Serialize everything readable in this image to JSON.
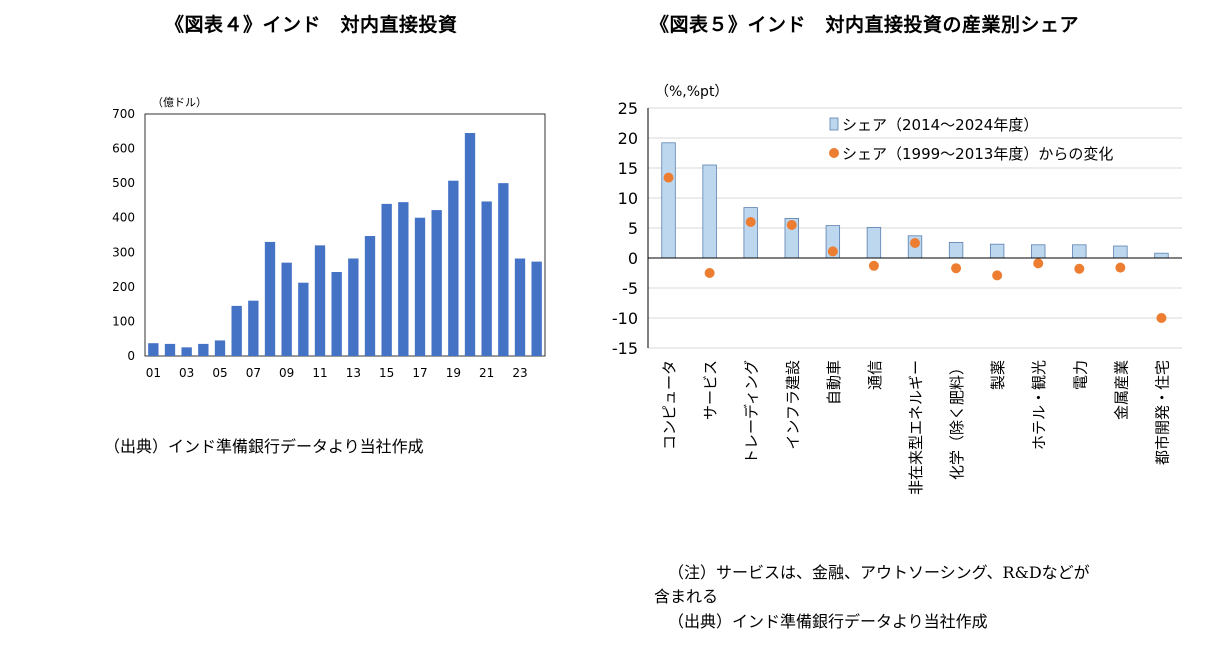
{
  "chart_data": [
    {
      "type": "bar",
      "title": "《図表４》インド　対内直接投資",
      "ylabel": "（億ドル）",
      "xlabel": "",
      "ylim": [
        0,
        700
      ],
      "yticks": [
        0,
        100,
        200,
        300,
        400,
        500,
        600,
        700
      ],
      "categories": [
        "01",
        "02",
        "03",
        "04",
        "05",
        "06",
        "07",
        "08",
        "09",
        "10",
        "11",
        "12",
        "13",
        "14",
        "15",
        "16",
        "17",
        "18",
        "19",
        "20",
        "21",
        "22",
        "23",
        "24"
      ],
      "xtick_labels": [
        "01",
        "",
        "03",
        "",
        "05",
        "",
        "07",
        "",
        "09",
        "",
        "11",
        "",
        "13",
        "",
        "15",
        "",
        "17",
        "",
        "19",
        "",
        "21",
        "",
        "23",
        ""
      ],
      "values": [
        37,
        35,
        25,
        35,
        45,
        145,
        160,
        330,
        270,
        212,
        320,
        243,
        282,
        347,
        440,
        445,
        400,
        422,
        507,
        645,
        447,
        500,
        282,
        273
      ],
      "color": "#4472c4",
      "source": "（出典）インド準備銀行データより当社作成"
    },
    {
      "type": "bar+scatter",
      "title": "《図表５》インド　対内直接投資の産業別シェア",
      "ylabel": "（%,%pt）",
      "ylim": [
        -15,
        25
      ],
      "yticks": [
        25,
        20,
        15,
        10,
        5,
        0,
        -5,
        -10,
        -15
      ],
      "categories": [
        "コンピュータ",
        "サービス",
        "トレーディング",
        "インフラ建設",
        "自動車",
        "通信",
        "非在来型エネルギー",
        "化学（除く肥料）",
        "製薬",
        "ホテル・観光",
        "電力",
        "金属産業",
        "都市開発・住宅"
      ],
      "series": [
        {
          "name": "シェア（2014～2024年度）",
          "kind": "bar",
          "color": "#bdd7ee",
          "values": [
            19.2,
            15.5,
            8.4,
            6.6,
            5.4,
            5.1,
            3.7,
            2.6,
            2.3,
            2.2,
            2.2,
            2.0,
            0.8
          ]
        },
        {
          "name": "シェア（1999～2013年度）からの変化",
          "kind": "marker",
          "color": "#ed7d31",
          "values": [
            13.4,
            -2.5,
            6.0,
            5.5,
            1.1,
            -1.3,
            2.5,
            -1.7,
            -2.9,
            -0.9,
            -1.8,
            -1.6,
            -10.0
          ]
        }
      ],
      "legend": "top",
      "note_line1": "（注）サービスは、金融、アウトソーシング、R&Dなどが",
      "note_line2": "含まれる",
      "source": "（出典）インド準備銀行データより当社作成"
    }
  ]
}
